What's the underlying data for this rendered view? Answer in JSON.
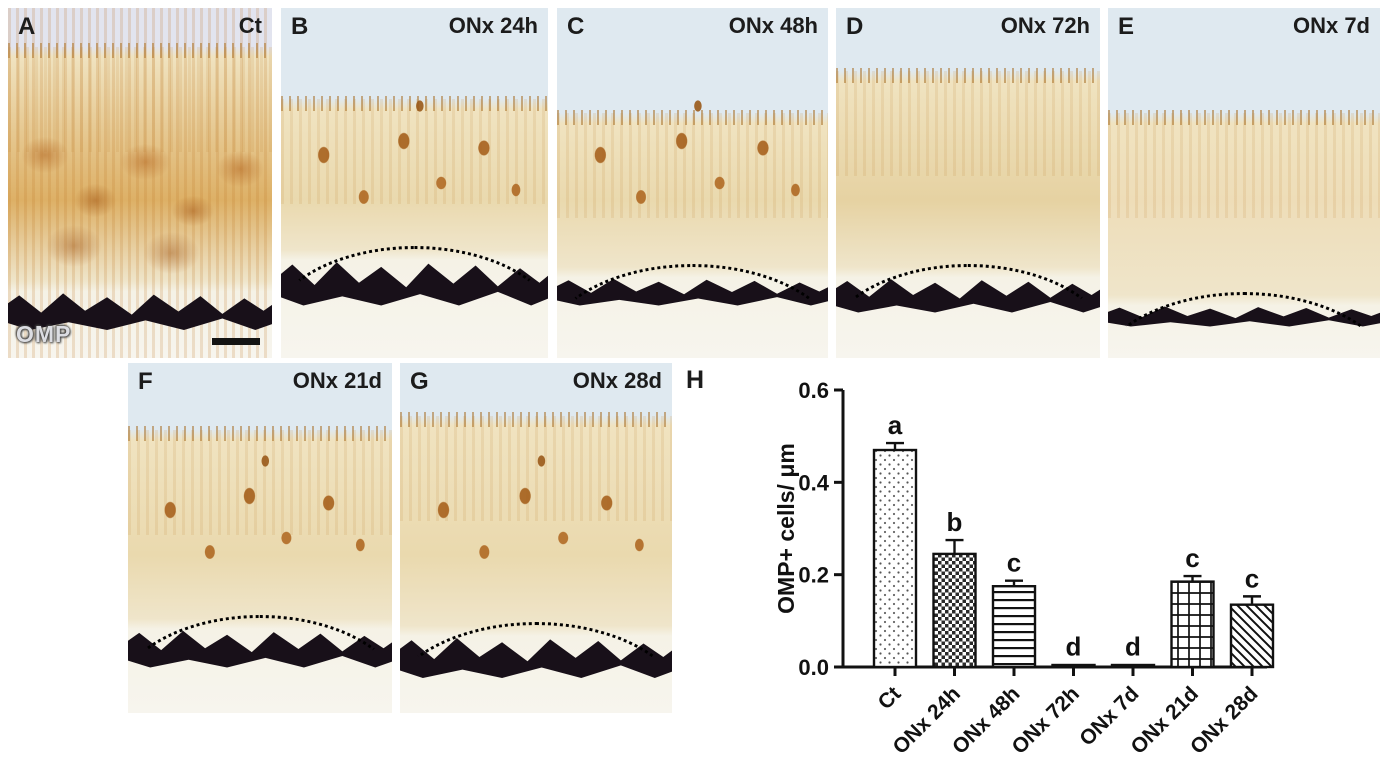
{
  "figure": {
    "panels": [
      {
        "letter": "A",
        "condition": "Ct",
        "stain_label": "OMP",
        "has_scalebar": true
      },
      {
        "letter": "B",
        "condition": "ONx 24h"
      },
      {
        "letter": "C",
        "condition": "ONx 48h"
      },
      {
        "letter": "D",
        "condition": "ONx 72h"
      },
      {
        "letter": "E",
        "condition": "ONx 7d"
      },
      {
        "letter": "F",
        "condition": "ONx 21d"
      },
      {
        "letter": "G",
        "condition": "ONx 28d"
      },
      {
        "letter": "H"
      }
    ]
  },
  "palette": {
    "stain_brown": "#b06a2a",
    "dark_band": "#181019",
    "sky_blue": "#dfe9f0",
    "tissue_cream": "#ead9ae",
    "axis_black": "#111111"
  },
  "chart_data": {
    "type": "bar",
    "panel": "H",
    "categories": [
      "Ct",
      "ONx 24h",
      "ONx 48h",
      "ONx 72h",
      "ONx 7d",
      "ONx 21d",
      "ONx 28d"
    ],
    "values": [
      0.47,
      0.245,
      0.175,
      0.003,
      0.003,
      0.185,
      0.135
    ],
    "errors": [
      0.015,
      0.03,
      0.012,
      0.0,
      0.0,
      0.012,
      0.018
    ],
    "sig_letters": [
      "a",
      "b",
      "c",
      "d",
      "d",
      "c",
      "c"
    ],
    "patterns": [
      "dots",
      "checker",
      "hlines",
      "none",
      "none",
      "grid",
      "diag"
    ],
    "ylabel": "OMP+ cells/ μm",
    "xlabel": "",
    "yticks": [
      0.0,
      0.2,
      0.4,
      0.6
    ],
    "ylim": [
      0,
      0.6
    ],
    "bar_fill": "#ffffff",
    "outline": "#111111",
    "grid": false,
    "legend": "none"
  }
}
